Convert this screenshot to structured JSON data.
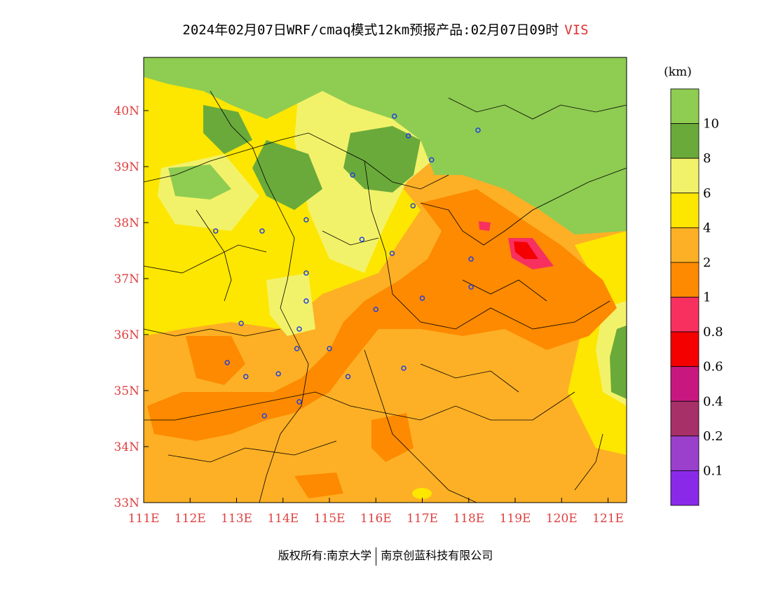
{
  "title": {
    "main": "2024年02月07日WRF/cmaq模式12km预报产品:02月07日09时",
    "variable": "VIS"
  },
  "legend": {
    "unit": "(km)",
    "bands": [
      {
        "label": "10",
        "color": "#8fcc52"
      },
      {
        "label": "8",
        "color": "#6aaa3a"
      },
      {
        "label": "6",
        "color": "#f2f26a"
      },
      {
        "label": "4",
        "color": "#fde600"
      },
      {
        "label": "2",
        "color": "#fdb025"
      },
      {
        "label": "1",
        "color": "#fd8a00"
      },
      {
        "label": "0.8",
        "color": "#f83060"
      },
      {
        "label": "0.6",
        "color": "#f40000"
      },
      {
        "label": "0.4",
        "color": "#c81880"
      },
      {
        "label": "0.2",
        "color": "#a83068"
      },
      {
        "label": "0.1",
        "color": "#9a40cc"
      },
      {
        "label": "",
        "color": "#8a2ae8"
      }
    ]
  },
  "axes": {
    "lat_labels": [
      "33N",
      "34N",
      "35N",
      "36N",
      "37N",
      "38N",
      "39N",
      "40N"
    ],
    "lon_labels": [
      "111E",
      "112E",
      "113E",
      "114E",
      "115E",
      "116E",
      "117E",
      "118E",
      "119E",
      "120E",
      "121E"
    ],
    "lat_values": [
      33,
      34,
      35,
      36,
      37,
      38,
      39,
      40
    ],
    "lon_values": [
      111,
      112,
      113,
      114,
      115,
      116,
      117,
      118,
      119,
      120,
      121
    ],
    "lon_range": [
      111,
      121.4
    ],
    "lat_range": [
      33,
      40.95
    ],
    "label_color": "#e04040"
  },
  "stations": [
    [
      116.4,
      39.9
    ],
    [
      116.7,
      39.55
    ],
    [
      117.2,
      39.12
    ],
    [
      118.2,
      39.65
    ],
    [
      115.5,
      38.85
    ],
    [
      116.8,
      38.3
    ],
    [
      114.5,
      38.05
    ],
    [
      112.55,
      37.85
    ],
    [
      113.55,
      37.85
    ],
    [
      115.7,
      37.7
    ],
    [
      116.35,
      37.45
    ],
    [
      118.05,
      37.35
    ],
    [
      114.5,
      37.1
    ],
    [
      118.05,
      36.85
    ],
    [
      117.0,
      36.65
    ],
    [
      114.5,
      36.6
    ],
    [
      116.0,
      36.45
    ],
    [
      113.1,
      36.2
    ],
    [
      114.35,
      36.1
    ],
    [
      115.0,
      35.75
    ],
    [
      114.3,
      35.75
    ],
    [
      112.8,
      35.5
    ],
    [
      116.6,
      35.4
    ],
    [
      113.9,
      35.3
    ],
    [
      113.2,
      35.25
    ],
    [
      115.4,
      35.25
    ],
    [
      114.35,
      34.8
    ],
    [
      113.6,
      34.55
    ]
  ],
  "footer": {
    "left": "版权所有:南京大学",
    "right": "南京创蓝科技有限公司"
  }
}
